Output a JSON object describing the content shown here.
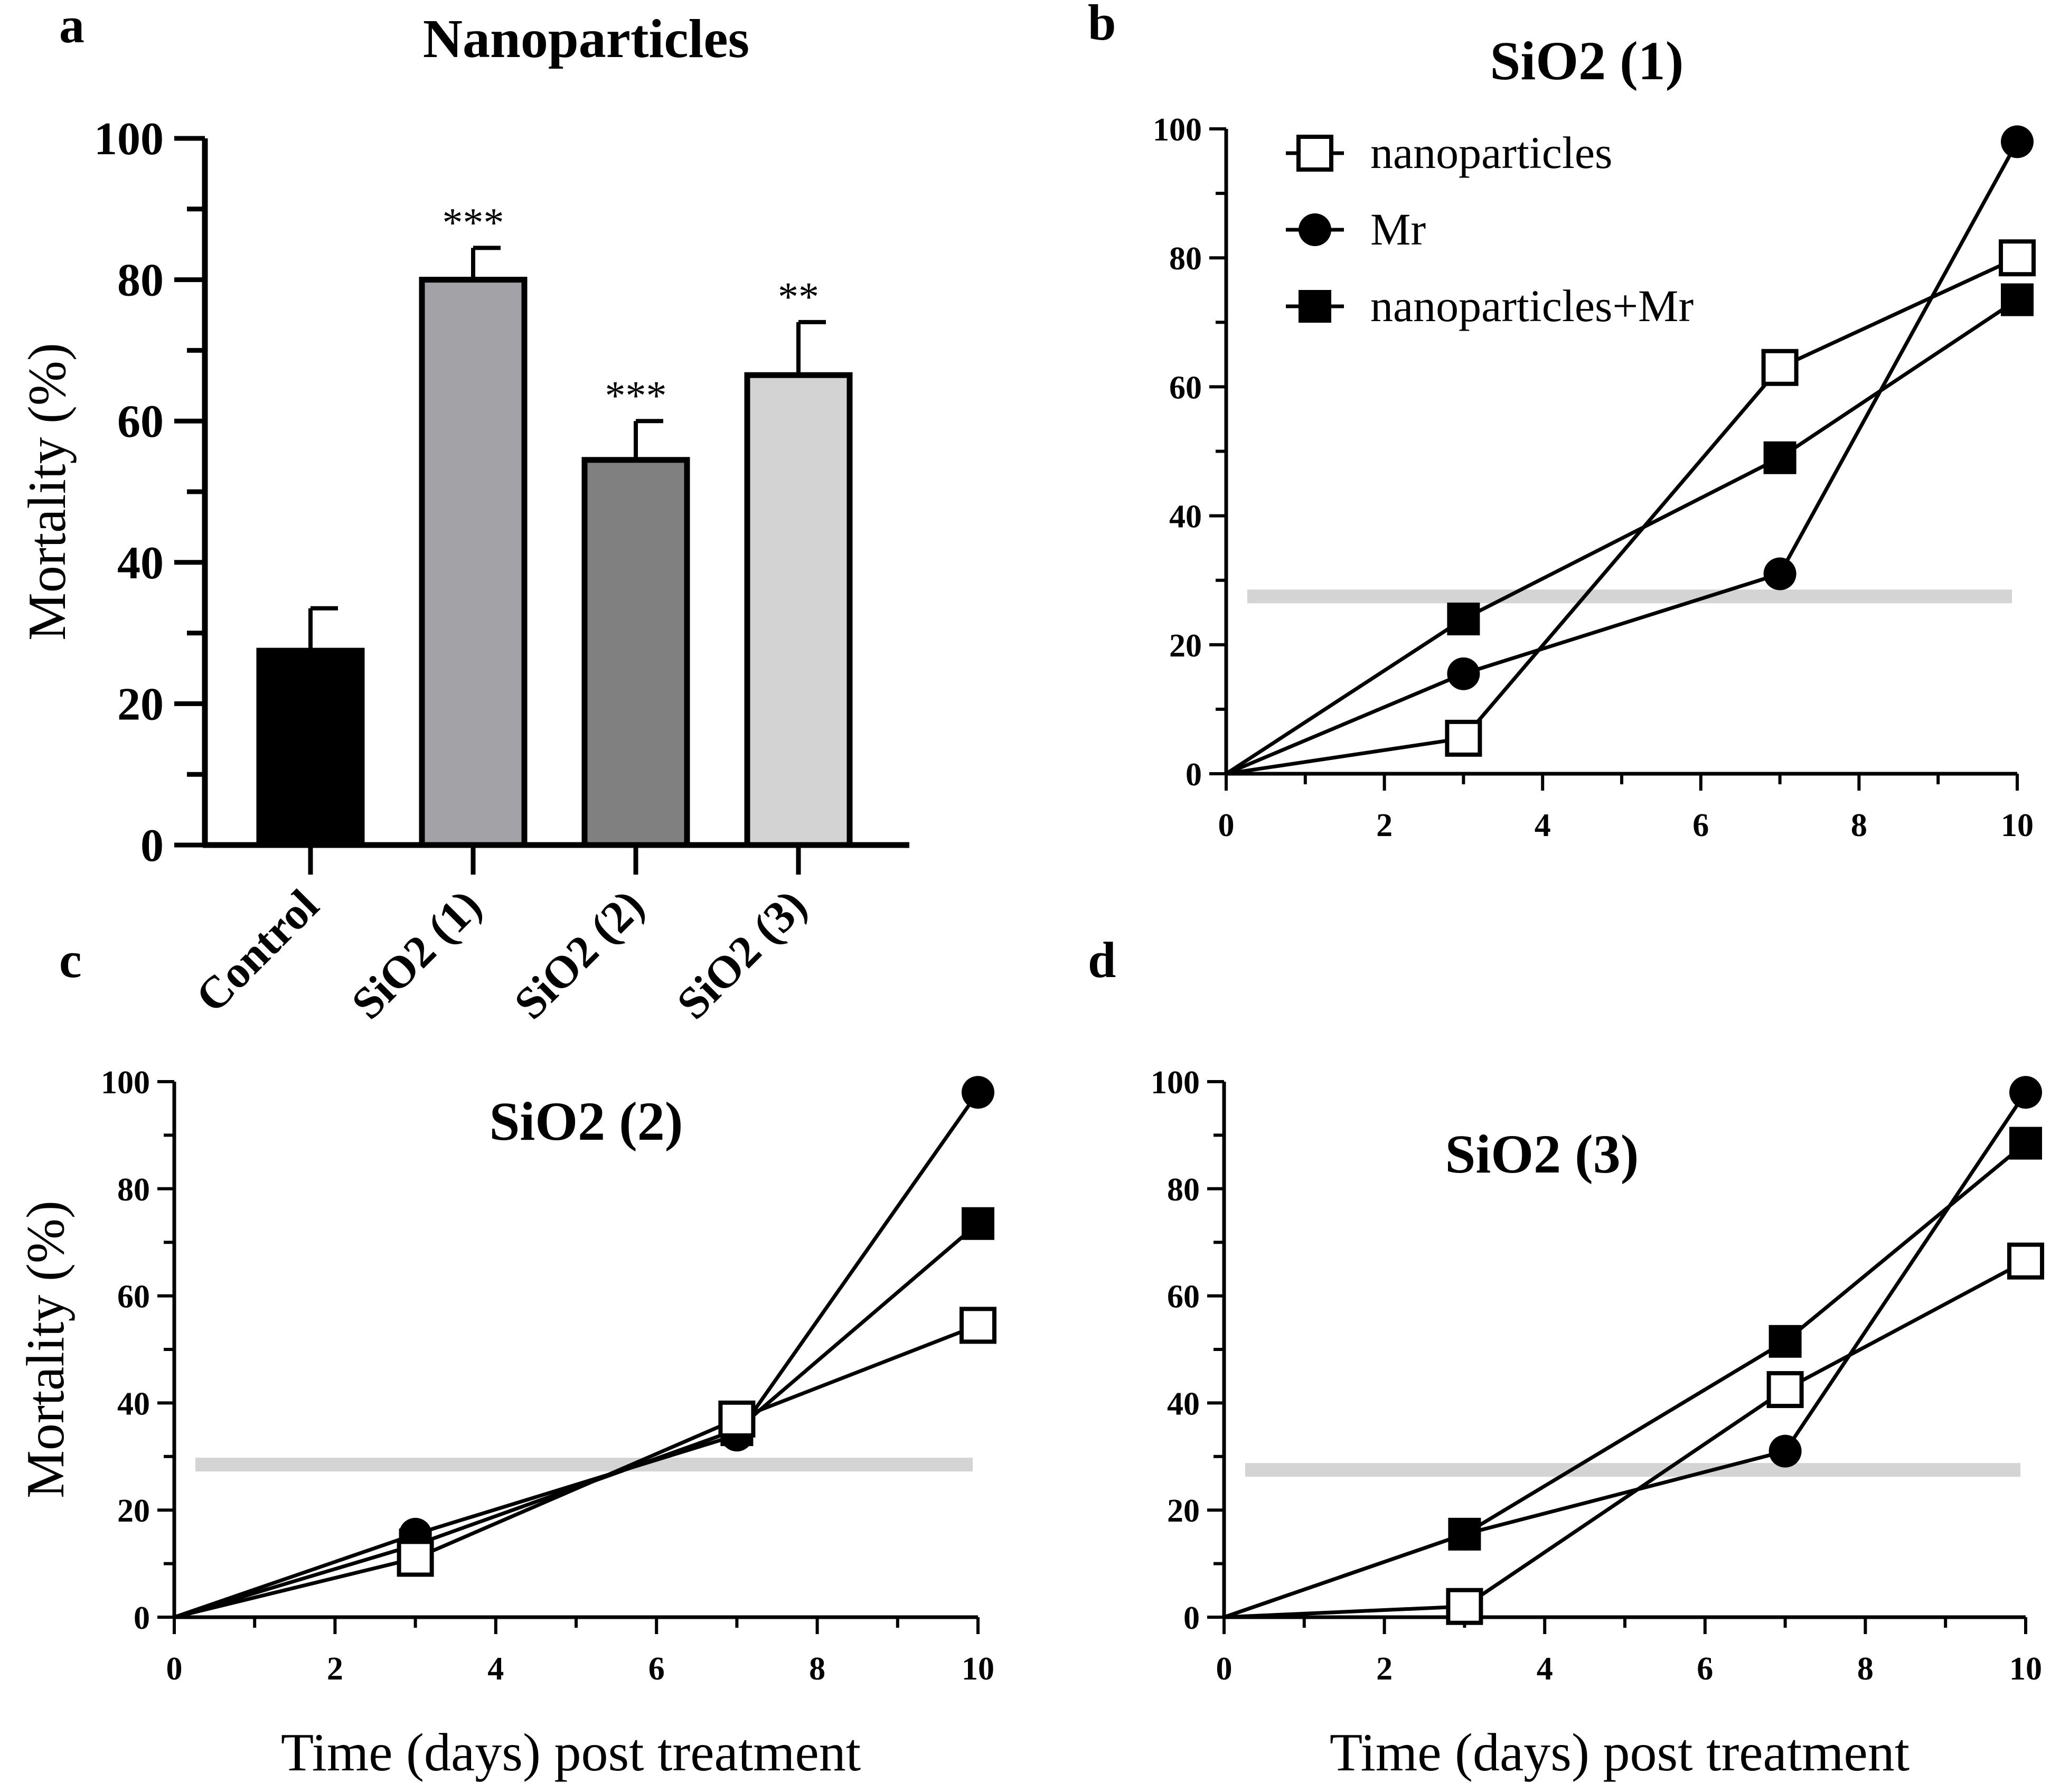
{
  "chart_data": [
    {
      "panel": "a",
      "type": "bar",
      "title": "Nanoparticles",
      "ylabel": "Mortality (%)",
      "xlabel": "",
      "ylim": [
        0,
        100
      ],
      "yticks": [
        0,
        20,
        40,
        60,
        80,
        100
      ],
      "categories": [
        "Control",
        "SiO2 (1)",
        "SiO2 (2)",
        "SiO2 (3)"
      ],
      "values": [
        27.5,
        80,
        54.5,
        66.5
      ],
      "errors": [
        6,
        4.5,
        5.5,
        7.5
      ],
      "significance": [
        "",
        "***",
        "***",
        "**"
      ],
      "colors": [
        "#000000",
        "#a3a3a7",
        "#808080",
        "#d3d3d3"
      ]
    },
    {
      "panel": "b",
      "type": "line",
      "title": "SiO2 (1)",
      "xlabel": "",
      "ylabel": "",
      "xlim": [
        0,
        10
      ],
      "ylim": [
        0,
        100
      ],
      "xticks": [
        0,
        2,
        4,
        6,
        8,
        10
      ],
      "yticks": [
        0,
        20,
        40,
        60,
        80,
        100
      ],
      "x": [
        0,
        3,
        7,
        10
      ],
      "control_level": 27.5,
      "series": [
        {
          "name": "nanoparticles",
          "marker": "open-square",
          "values": [
            0,
            5.5,
            63,
            80
          ]
        },
        {
          "name": "Mr",
          "marker": "filled-circle",
          "values": [
            0,
            15.5,
            31,
            98
          ]
        },
        {
          "name": "nanoparticles+Mr",
          "marker": "filled-square",
          "values": [
            0,
            24,
            49,
            73.5
          ]
        }
      ],
      "legend": [
        "nanoparticles",
        "Mr",
        "nanoparticles+Mr"
      ]
    },
    {
      "panel": "c",
      "type": "line",
      "title": "SiO2 (2)",
      "xlabel": "Time (days) post treatment",
      "ylabel": "Mortality (%)",
      "xlim": [
        0,
        10
      ],
      "ylim": [
        0,
        100
      ],
      "xticks": [
        0,
        2,
        4,
        6,
        8,
        10
      ],
      "yticks": [
        0,
        20,
        40,
        60,
        80,
        100
      ],
      "x": [
        0,
        3,
        7,
        10
      ],
      "control_level": 28.5,
      "series": [
        {
          "name": "nanoparticles",
          "marker": "open-square",
          "values": [
            0,
            11,
            37,
            54.5
          ]
        },
        {
          "name": "Mr",
          "marker": "filled-circle",
          "values": [
            0,
            15.5,
            34,
            98
          ]
        },
        {
          "name": "nanoparticles+Mr",
          "marker": "filled-square",
          "values": [
            0,
            13.5,
            35,
            73.5
          ]
        }
      ]
    },
    {
      "panel": "d",
      "type": "line",
      "title": "SiO2 (3)",
      "xlabel": "Time (days) post treatment",
      "ylabel": "",
      "xlim": [
        0,
        10
      ],
      "ylim": [
        0,
        100
      ],
      "xticks": [
        0,
        2,
        4,
        6,
        8,
        10
      ],
      "yticks": [
        0,
        20,
        40,
        60,
        80,
        100
      ],
      "x": [
        0,
        3,
        7,
        10
      ],
      "control_level": 27.5,
      "series": [
        {
          "name": "nanoparticles",
          "marker": "open-square",
          "values": [
            0,
            2,
            42.5,
            66.5
          ]
        },
        {
          "name": "Mr",
          "marker": "filled-circle",
          "values": [
            0,
            15.5,
            31,
            98
          ]
        },
        {
          "name": "nanoparticles+Mr",
          "marker": "filled-square",
          "values": [
            0,
            15.5,
            51.5,
            88.5
          ]
        }
      ]
    }
  ]
}
